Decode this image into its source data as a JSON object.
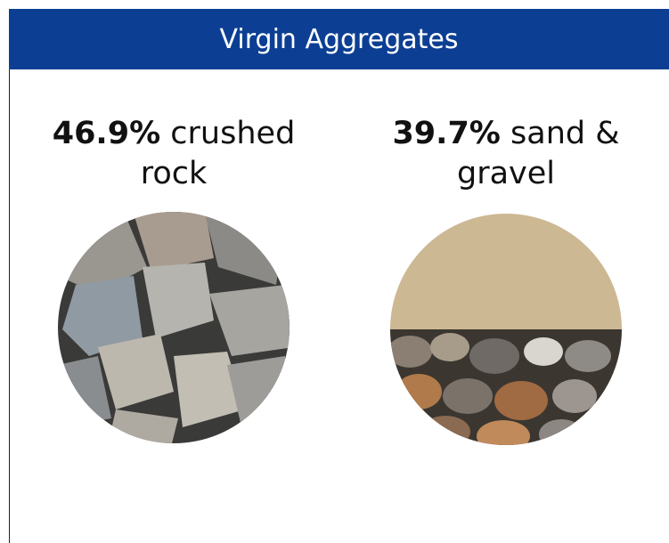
{
  "header": {
    "title": "Virgin Aggregates"
  },
  "items": [
    {
      "percent": "46.9%",
      "label": "crushed rock"
    },
    {
      "percent": "39.7%",
      "label": "sand & gravel"
    }
  ]
}
